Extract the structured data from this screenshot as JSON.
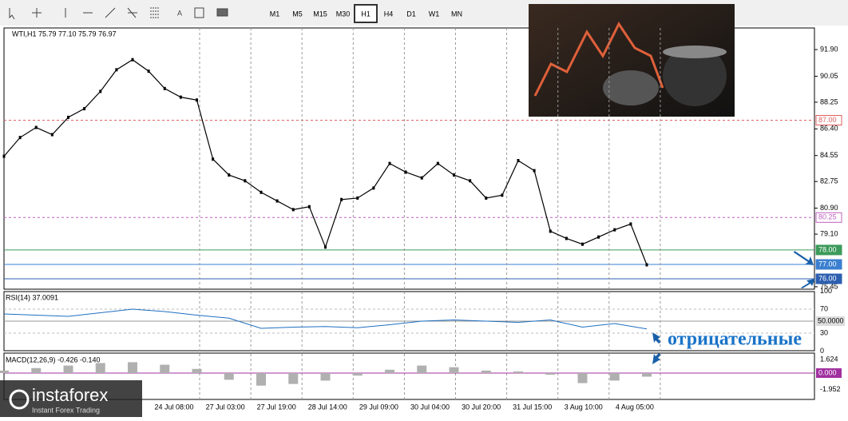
{
  "toolbar": {
    "timeframes": [
      "M1",
      "M5",
      "M15",
      "M30",
      "H1",
      "H4",
      "D1",
      "W1",
      "MN"
    ],
    "active": "H1"
  },
  "chart": {
    "header": "WTI,H1  75.79 77.10 75.79 76.97",
    "ylim": [
      75.28,
      93.4
    ],
    "yticks": [
      {
        "value": 91.9,
        "label": "91.90"
      },
      {
        "value": 90.05,
        "label": "90.05"
      },
      {
        "value": 88.25,
        "label": "88.25"
      },
      {
        "value": 86.4,
        "label": "86.40"
      },
      {
        "value": 84.55,
        "label": "84.55"
      },
      {
        "value": 82.75,
        "label": "82.75"
      },
      {
        "value": 80.9,
        "label": "80.90"
      },
      {
        "value": 79.1,
        "label": "79.10"
      },
      {
        "value": 75.45,
        "label": "75.45"
      }
    ],
    "levels": [
      {
        "value": 87,
        "label": "87.00",
        "color": "#e06060"
      },
      {
        "value": 80.25,
        "label": "80.25",
        "color": "#c060c0"
      },
      {
        "value": 78,
        "label": "78.00",
        "color": "#3c9a5a"
      },
      {
        "value": 77,
        "label": "77.00",
        "color": "#3a7fd0"
      },
      {
        "value": 76,
        "label": "76.00",
        "color": "#2d5fb0"
      }
    ],
    "close": [
      84.5,
      85.8,
      86.5,
      86.0,
      87.2,
      87.8,
      89.0,
      90.5,
      91.2,
      90.4,
      89.2,
      88.6,
      88.4,
      84.3,
      83.2,
      82.8,
      82.0,
      81.4,
      80.8,
      81.0,
      78.2,
      81.5,
      81.6,
      82.3,
      84.0,
      83.4,
      83.0,
      84.0,
      83.2,
      82.8,
      81.6,
      81.8,
      84.2,
      83.5,
      79.3,
      78.8,
      78.4,
      78.9,
      79.4,
      79.8,
      76.97
    ],
    "time_labels": [
      "24 Jul 08:00",
      "27 Jul 03:00",
      "27 Jul 19:00",
      "28 Jul 14:00",
      "29 Jul 09:00",
      "30 Jul 04:00",
      "30 Jul 20:00",
      "31 Jul 15:00",
      "3 Aug 10:00",
      "4 Aug 05:00"
    ]
  },
  "rsi": {
    "label": "RSI(14) 37.0091",
    "ylim": [
      0,
      100
    ],
    "yticks": [
      100,
      70,
      30,
      0
    ],
    "level": {
      "value": 50,
      "label": "50.0000"
    },
    "values": [
      62,
      60,
      58,
      64,
      70,
      66,
      60,
      55,
      38,
      40,
      41,
      39,
      44,
      50,
      52,
      50,
      48,
      52,
      40,
      46,
      37
    ]
  },
  "macd": {
    "label": "MACD(12,26,9) -0.426 -0.140",
    "ylim": [
      -3.15,
      2.39
    ],
    "yticks": [
      1.624,
      -1.952
    ],
    "zero": {
      "value": 0,
      "label": "0.000"
    },
    "values": [
      0.3,
      0.6,
      0.9,
      1.2,
      1.3,
      1.0,
      0.5,
      -0.8,
      -1.5,
      -1.3,
      -0.9,
      -0.3,
      0.4,
      0.9,
      0.7,
      0.3,
      0.2,
      -0.2,
      -1.2,
      -0.9,
      -0.426
    ]
  },
  "annotation": "отрицательные",
  "watermark": {
    "brand": "instaforex",
    "tagline": "Instant Forex Trading"
  }
}
